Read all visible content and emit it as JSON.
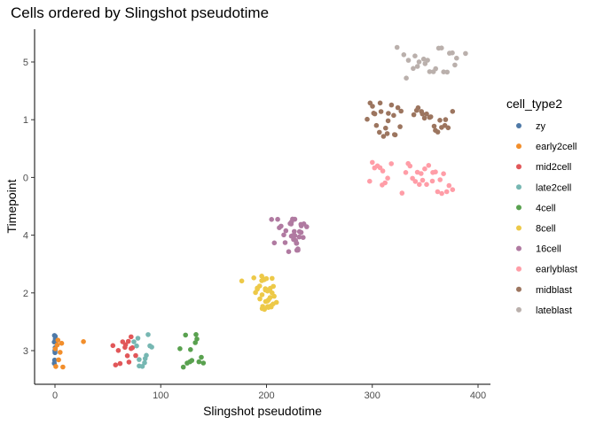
{
  "chart_data": {
    "type": "scatter",
    "title": "Cells ordered by Slingshot pseudotime",
    "xlabel": "Slingshot pseudotime",
    "ylabel": "Timepoint",
    "xlim": [
      -20,
      415
    ],
    "x_ticks": [
      0,
      100,
      200,
      300,
      400
    ],
    "y_categories": [
      "3",
      "2",
      "4",
      "0",
      "1",
      "5"
    ],
    "grid": false,
    "legend_title": "cell_type2",
    "legend_position": "right",
    "series": [
      {
        "name": "zy",
        "color": "#4E79A7",
        "y": "3",
        "x": [
          0,
          0,
          0,
          0,
          0,
          0,
          0,
          0,
          0,
          0,
          0
        ]
      },
      {
        "name": "early2cell",
        "color": "#F28E2B",
        "y": "3",
        "x": [
          0,
          1,
          2,
          5,
          6,
          8,
          27,
          2,
          4
        ]
      },
      {
        "name": "mid2cell",
        "color": "#E15759",
        "y": "3",
        "x": [
          55,
          58,
          62,
          64,
          66,
          68,
          70,
          72,
          74,
          76,
          66,
          60,
          70,
          72
        ]
      },
      {
        "name": "late2cell",
        "color": "#76B7B2",
        "y": "3",
        "x": [
          75,
          78,
          80,
          82,
          84,
          86,
          88,
          90,
          92,
          85,
          80,
          78
        ]
      },
      {
        "name": "4cell",
        "color": "#59A14F",
        "y": "3",
        "x": [
          118,
          122,
          125,
          128,
          130,
          132,
          135,
          138,
          140,
          128,
          124,
          134,
          136
        ]
      },
      {
        "name": "8cell",
        "color": "#EDC948",
        "y": "2",
        "x": [
          176,
          188,
          190,
          192,
          194,
          195,
          196,
          197,
          198,
          199,
          200,
          201,
          202,
          203,
          204,
          205,
          206,
          207,
          208,
          199,
          201,
          203,
          197,
          205,
          193,
          196,
          200,
          202,
          204,
          198,
          206,
          200,
          195,
          191,
          209,
          201
        ]
      },
      {
        "name": "16cell",
        "color": "#B07AA1",
        "y": "4",
        "x": [
          217,
          219,
          221,
          222,
          223,
          224,
          225,
          226,
          227,
          228,
          229,
          230,
          231,
          232,
          233,
          234,
          236,
          238,
          225,
          227,
          229,
          231,
          223,
          233,
          205,
          208,
          210,
          212,
          214,
          216,
          226,
          228,
          230,
          232
        ]
      },
      {
        "name": "earlyblast",
        "color": "#FF9DA7",
        "y": "0",
        "x": [
          308,
          310,
          328,
          332,
          336,
          340,
          344,
          348,
          352,
          356,
          360,
          364,
          368,
          372,
          338,
          346,
          354,
          362,
          370,
          376,
          334,
          342,
          350,
          358,
          366,
          297,
          300,
          305,
          310,
          315,
          302,
          312,
          318
        ]
      },
      {
        "name": "midblast",
        "color": "#9C755F",
        "y": "1",
        "x": [
          296,
          298,
          300,
          302,
          304,
          306,
          308,
          310,
          312,
          314,
          316,
          318,
          320,
          322,
          324,
          326,
          328,
          303,
          309,
          315,
          321,
          340,
          344,
          348,
          352,
          356,
          360,
          364,
          368,
          372,
          376,
          346,
          354,
          362,
          370,
          342,
          358,
          366,
          350
        ]
      },
      {
        "name": "lateblast",
        "color": "#BAB0AC",
        "y": "5",
        "x": [
          323,
          330,
          335,
          340,
          345,
          350,
          355,
          360,
          365,
          370,
          375,
          380,
          338,
          348,
          358,
          368,
          378,
          343,
          353,
          363,
          373,
          333,
          388
        ]
      }
    ]
  }
}
